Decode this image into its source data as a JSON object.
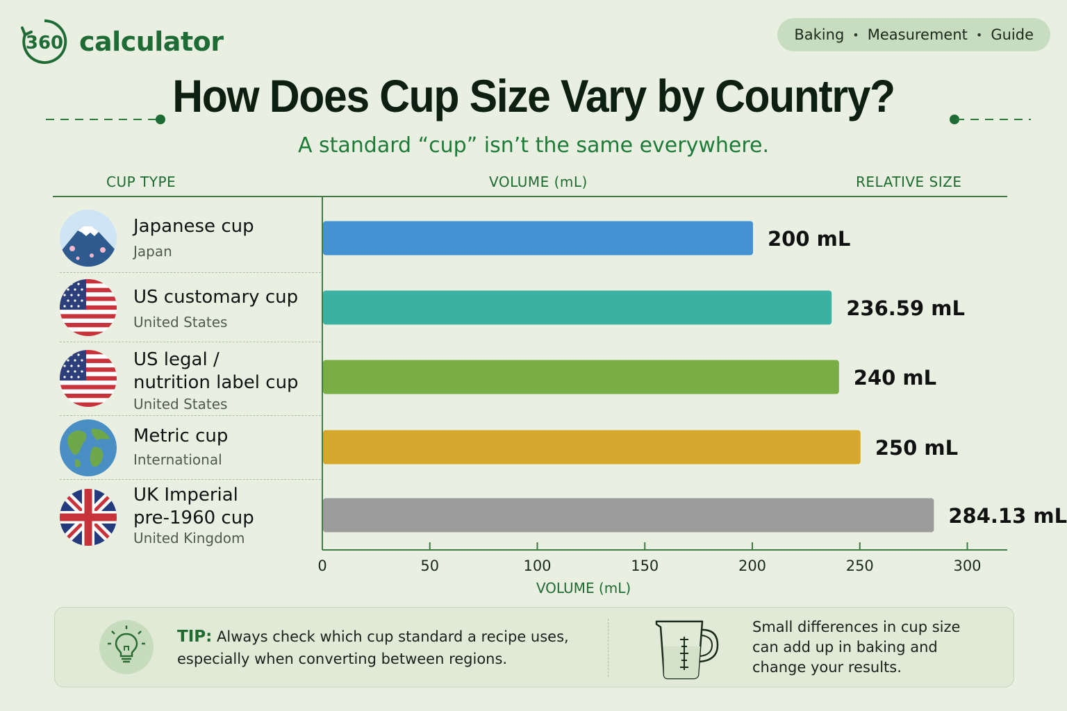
{
  "brand": {
    "mark": "360",
    "name": "calculator"
  },
  "tags": [
    "Baking",
    "Measurement",
    "Guide"
  ],
  "title": "How Does Cup Size Vary by Country?",
  "subtitle": "A standard “cup” isn’t the same everywhere.",
  "columns": {
    "type": "CUP TYPE",
    "volume": "VOLUME (mL)",
    "relative": "RELATIVE SIZE"
  },
  "rows": [
    {
      "name_lines": [
        "Japanese cup"
      ],
      "country": "Japan",
      "icon": "mount-fuji-icon"
    },
    {
      "name_lines": [
        "US customary cup"
      ],
      "country": "United States",
      "icon": "us-flag-icon"
    },
    {
      "name_lines": [
        "US legal /",
        "nutrition label cup"
      ],
      "country": "United States",
      "icon": "us-flag-icon"
    },
    {
      "name_lines": [
        "Metric cup"
      ],
      "country": "International",
      "icon": "globe-icon"
    },
    {
      "name_lines": [
        "UK Imperial",
        "pre-1960 cup"
      ],
      "country": "United Kingdom",
      "icon": "uk-flag-icon"
    }
  ],
  "chart_data": {
    "type": "bar",
    "orientation": "horizontal",
    "categories": [
      "Japanese cup",
      "US customary cup",
      "US legal / nutrition label cup",
      "Metric cup",
      "UK Imperial pre-1960 cup"
    ],
    "values": [
      200,
      236.59,
      240,
      250,
      284.13
    ],
    "value_labels": [
      "200 mL",
      "236.59 mL",
      "240 mL",
      "250 mL",
      "284.13 mL"
    ],
    "colors": [
      "#4592d2",
      "#3bb1a4",
      "#79ad45",
      "#d6a62d",
      "#9c9c9c"
    ],
    "xlabel": "VOLUME (mL)",
    "xticks": [
      0,
      50,
      100,
      150,
      200,
      250,
      300
    ],
    "xlim": [
      0,
      320
    ],
    "grid": false
  },
  "tip": {
    "label": "TIP:",
    "line1": "Always check which cup standard a recipe uses,",
    "line2": "especially when converting between regions."
  },
  "note": [
    "Small differences in cup size",
    "can add up in baking and",
    "change your results."
  ],
  "colors": {
    "accent": "#1e6a30",
    "background": "#e9f0e1",
    "tag_bg": "#c8ddbf"
  }
}
